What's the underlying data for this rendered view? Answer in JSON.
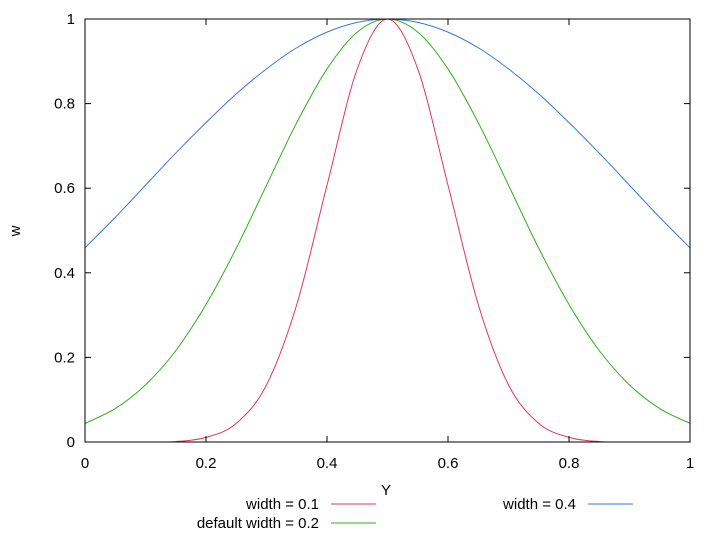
{
  "chart_data": {
    "type": "line",
    "title": "",
    "xlabel": "Y",
    "ylabel": "w",
    "xlim": [
      0,
      1
    ],
    "ylim": [
      0,
      1
    ],
    "xticks": [
      "0",
      "0.2",
      "0.4",
      "0.6",
      "0.8",
      "1"
    ],
    "yticks": [
      "0",
      "0.2",
      "0.4",
      "0.6",
      "0.8",
      "1"
    ],
    "grid": false,
    "legend_position": "bottom",
    "series": [
      {
        "name": "width = 0.1",
        "color": "#e0365f",
        "x": [
          0,
          0.05,
          0.1,
          0.15,
          0.2,
          0.25,
          0.3,
          0.35,
          0.4,
          0.45,
          0.5,
          0.55,
          0.6,
          0.65,
          0.7,
          0.75,
          0.8,
          0.85,
          0.9,
          0.95,
          1
        ],
        "y": [
          0.0,
          0.0,
          0.0,
          0.001,
          0.011,
          0.044,
          0.135,
          0.325,
          0.607,
          0.882,
          1.0,
          0.882,
          0.607,
          0.325,
          0.135,
          0.044,
          0.011,
          0.001,
          0.0,
          0.0,
          0.0
        ]
      },
      {
        "name": "default width = 0.2",
        "color": "#2fb11a",
        "x": [
          0,
          0.05,
          0.1,
          0.15,
          0.2,
          0.25,
          0.3,
          0.35,
          0.4,
          0.45,
          0.5,
          0.55,
          0.6,
          0.65,
          0.7,
          0.75,
          0.8,
          0.85,
          0.9,
          0.95,
          1
        ],
        "y": [
          0.044,
          0.079,
          0.135,
          0.216,
          0.325,
          0.458,
          0.607,
          0.755,
          0.882,
          0.969,
          1.0,
          0.969,
          0.882,
          0.755,
          0.607,
          0.458,
          0.325,
          0.216,
          0.135,
          0.079,
          0.044
        ]
      },
      {
        "name": "width = 0.4",
        "color": "#3a75e2",
        "x": [
          0,
          0.05,
          0.1,
          0.15,
          0.2,
          0.25,
          0.3,
          0.35,
          0.4,
          0.45,
          0.5,
          0.55,
          0.6,
          0.65,
          0.7,
          0.75,
          0.8,
          0.85,
          0.9,
          0.95,
          1
        ],
        "y": [
          0.459,
          0.531,
          0.607,
          0.683,
          0.755,
          0.823,
          0.882,
          0.932,
          0.969,
          0.992,
          1.0,
          0.992,
          0.969,
          0.932,
          0.882,
          0.823,
          0.755,
          0.683,
          0.607,
          0.531,
          0.459
        ]
      }
    ]
  }
}
